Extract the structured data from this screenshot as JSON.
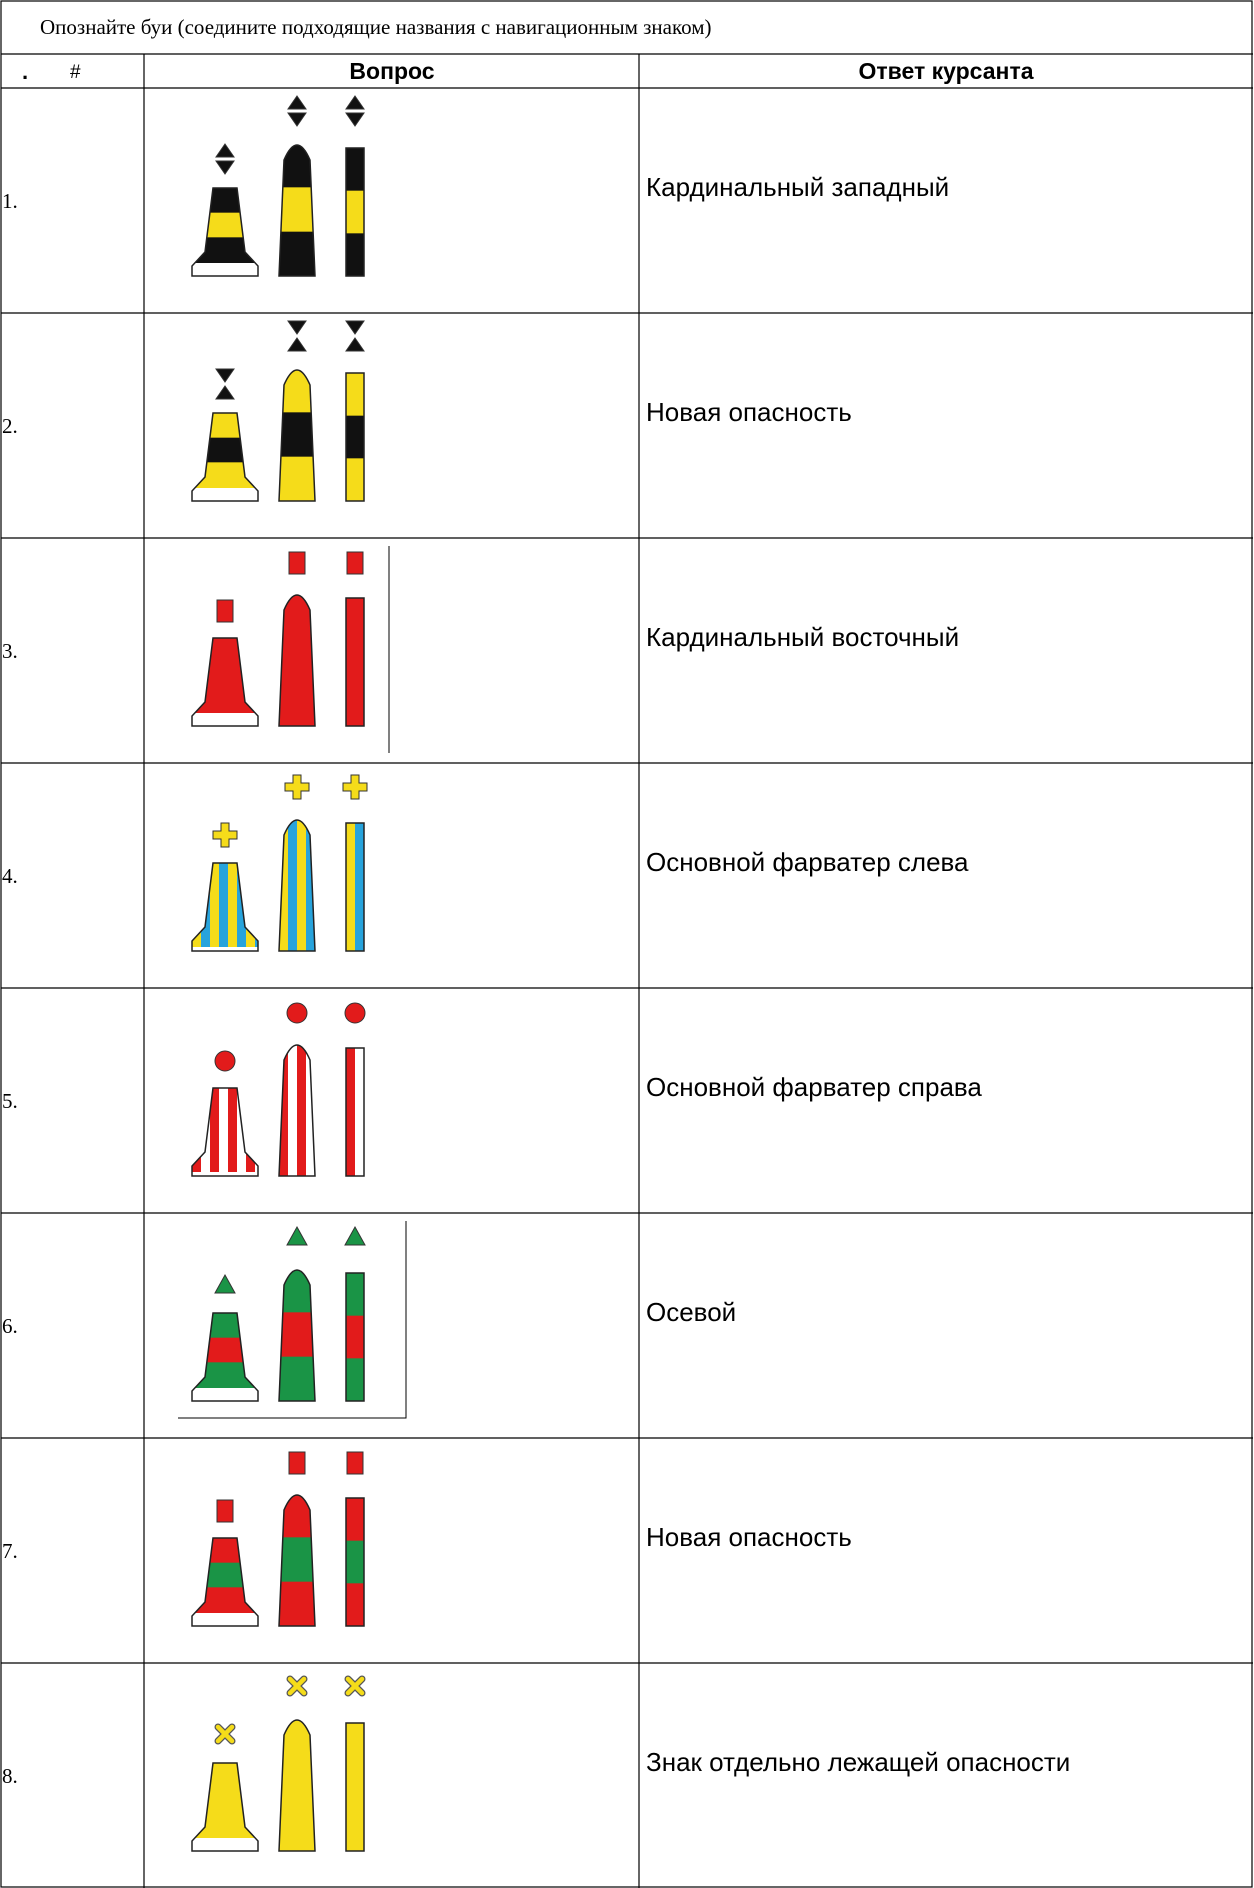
{
  "title": "Опознайте буи (соедините подходящие названия с навигационным знаком)",
  "header": {
    "marker": ".",
    "number": "#",
    "question": "Вопрос",
    "answer": "Ответ курсанта"
  },
  "rows": [
    {
      "number": "1.",
      "answer": "Кардинальный западный"
    },
    {
      "number": "2.",
      "answer": "Новая опасность"
    },
    {
      "number": "3.",
      "answer": "Кардинальный восточный"
    },
    {
      "number": "4.",
      "answer": "Основной фарватер слева"
    },
    {
      "number": "5.",
      "answer": "Основной фарватер справа"
    },
    {
      "number": "6.",
      "answer": "Осевой"
    },
    {
      "number": "7.",
      "answer": "Новая опасность"
    },
    {
      "number": "8.",
      "answer": "Знак отдельно лежащей опасности"
    }
  ]
}
